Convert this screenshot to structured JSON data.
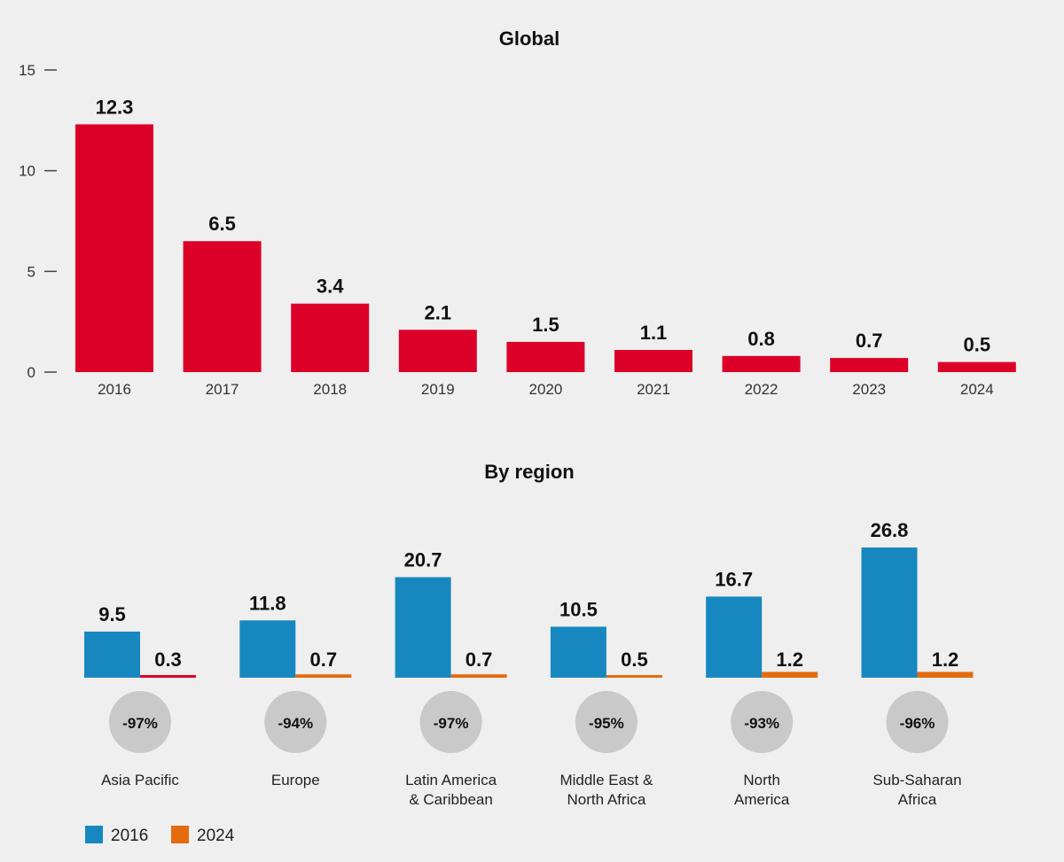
{
  "colors": {
    "global_bar": "#dc0028",
    "series_2016": "#1788bf",
    "series_2024": "#e46b0e",
    "asia_pacific_2024": "#dc0028",
    "badge": "#c9c9c9",
    "axis": "#444444"
  },
  "chart_data": [
    {
      "type": "bar",
      "title": "Global",
      "categories": [
        "2016",
        "2017",
        "2018",
        "2019",
        "2020",
        "2021",
        "2022",
        "2023",
        "2024"
      ],
      "values": [
        12.3,
        6.5,
        3.4,
        2.1,
        1.5,
        1.1,
        0.8,
        0.7,
        0.5
      ],
      "value_labels": [
        "12.3",
        "6.5",
        "3.4",
        "2.1",
        "1.5",
        "1.1",
        "0.8",
        "0.7",
        "0.5"
      ],
      "ylim": [
        0,
        15
      ],
      "yticks": [
        0,
        5,
        10,
        15
      ],
      "ytick_labels": [
        "0",
        "5",
        "10",
        "15"
      ],
      "xlabel": "",
      "ylabel": "",
      "grid": false
    },
    {
      "type": "bar",
      "title": "By region",
      "categories": [
        [
          "Asia Pacific"
        ],
        [
          "Europe"
        ],
        [
          "Latin America",
          "& Caribbean"
        ],
        [
          "Middle East &",
          "North Africa"
        ],
        [
          "North",
          "America"
        ],
        [
          "Sub-Saharan",
          "Africa"
        ]
      ],
      "series": [
        {
          "name": "2016",
          "values": [
            9.5,
            11.8,
            20.7,
            10.5,
            16.7,
            26.8
          ],
          "labels": [
            "9.5",
            "11.8",
            "20.7",
            "10.5",
            "16.7",
            "26.8"
          ]
        },
        {
          "name": "2024",
          "values": [
            0.3,
            0.7,
            0.7,
            0.5,
            1.2,
            1.2
          ],
          "labels": [
            "0.3",
            "0.7",
            "0.7",
            "0.5",
            "1.2",
            "1.2"
          ]
        }
      ],
      "changes": [
        "-97%",
        "-94%",
        "-97%",
        "-95%",
        "-93%",
        "-96%"
      ],
      "legend": [
        "2016",
        "2024"
      ],
      "legend_position": "bottom-left",
      "ylim": [
        0,
        30
      ],
      "grid": false
    }
  ]
}
